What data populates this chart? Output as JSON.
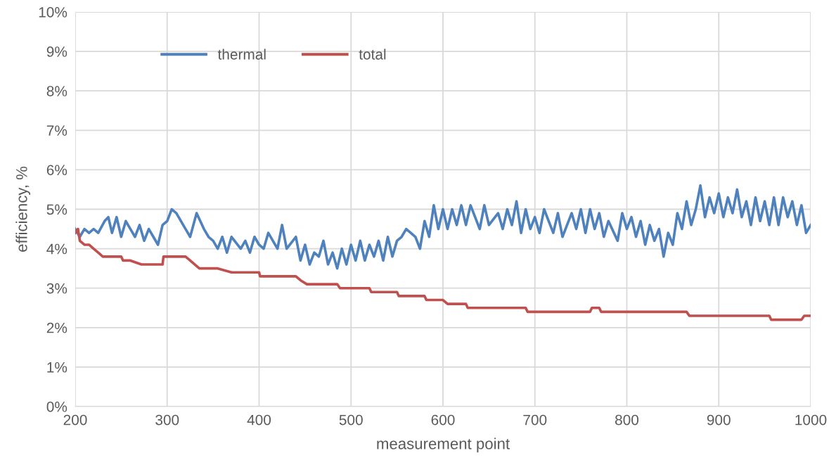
{
  "chart_data": {
    "type": "line",
    "xlabel": "measurement point",
    "ylabel": "efficiency, %",
    "xlim": [
      200,
      1000
    ],
    "xticks": [
      200,
      300,
      400,
      500,
      600,
      700,
      800,
      900,
      1000
    ],
    "ylim": [
      0,
      10
    ],
    "yticks": [
      {
        "value": 0,
        "label": "0%"
      },
      {
        "value": 1,
        "label": "1%"
      },
      {
        "value": 2,
        "label": "2%"
      },
      {
        "value": 3,
        "label": "3%"
      },
      {
        "value": 4,
        "label": "4%"
      },
      {
        "value": 5,
        "label": "5%"
      },
      {
        "value": 6,
        "label": "6%"
      },
      {
        "value": 7,
        "label": "7%"
      },
      {
        "value": 8,
        "label": "8%"
      },
      {
        "value": 9,
        "label": "9%"
      },
      {
        "value": 10,
        "label": "10%"
      }
    ],
    "grid": true,
    "legend": "top left",
    "marker": "none",
    "line_style": "solid",
    "series": [
      {
        "name": "thermal",
        "color": "#4f81bd",
        "x": [
          200,
          205,
          210,
          215,
          220,
          225,
          232,
          236,
          240,
          245,
          250,
          255,
          260,
          265,
          270,
          275,
          280,
          285,
          290,
          295,
          300,
          305,
          310,
          315,
          320,
          325,
          332,
          340,
          345,
          350,
          355,
          360,
          365,
          370,
          380,
          385,
          390,
          395,
          400,
          405,
          410,
          415,
          420,
          425,
          430,
          440,
          445,
          450,
          455,
          460,
          465,
          470,
          475,
          480,
          485,
          490,
          495,
          500,
          505,
          510,
          515,
          520,
          525,
          530,
          535,
          540,
          545,
          550,
          555,
          560,
          565,
          570,
          575,
          580,
          585,
          590,
          595,
          600,
          605,
          610,
          615,
          620,
          625,
          630,
          640,
          645,
          650,
          660,
          665,
          670,
          675,
          680,
          685,
          690,
          695,
          700,
          705,
          710,
          720,
          725,
          730,
          740,
          745,
          750,
          755,
          760,
          765,
          770,
          775,
          780,
          790,
          795,
          800,
          805,
          810,
          815,
          820,
          825,
          830,
          835,
          840,
          845,
          850,
          855,
          860,
          865,
          870,
          875,
          880,
          885,
          890,
          895,
          900,
          905,
          910,
          915,
          920,
          925,
          930,
          935,
          940,
          945,
          950,
          955,
          960,
          965,
          970,
          975,
          980,
          985,
          990,
          995,
          1000
        ],
        "values": [
          4.5,
          4.3,
          4.5,
          4.4,
          4.5,
          4.4,
          4.7,
          4.8,
          4.4,
          4.8,
          4.3,
          4.7,
          4.5,
          4.3,
          4.6,
          4.2,
          4.5,
          4.3,
          4.1,
          4.6,
          4.7,
          5.0,
          4.9,
          4.7,
          4.5,
          4.3,
          4.9,
          4.5,
          4.3,
          4.2,
          4.0,
          4.3,
          3.9,
          4.3,
          4.0,
          4.2,
          3.9,
          4.3,
          4.1,
          4.0,
          4.4,
          4.2,
          4.0,
          4.6,
          4.0,
          4.3,
          3.7,
          4.1,
          3.6,
          3.9,
          3.8,
          4.2,
          3.6,
          3.9,
          3.5,
          4.0,
          3.6,
          4.1,
          3.7,
          4.2,
          3.7,
          4.1,
          3.8,
          4.2,
          3.7,
          4.3,
          3.8,
          4.2,
          4.3,
          4.5,
          4.4,
          4.3,
          4.0,
          4.7,
          4.3,
          5.1,
          4.5,
          5.0,
          4.5,
          5.0,
          4.6,
          5.1,
          4.6,
          5.1,
          4.5,
          5.1,
          4.6,
          4.9,
          4.5,
          5.0,
          4.6,
          5.2,
          4.4,
          5.0,
          4.5,
          4.8,
          4.4,
          5.0,
          4.4,
          4.9,
          4.3,
          4.9,
          4.5,
          5.0,
          4.4,
          5.0,
          4.5,
          4.9,
          4.3,
          4.7,
          4.2,
          4.9,
          4.5,
          4.8,
          4.3,
          4.7,
          4.1,
          4.6,
          4.2,
          4.5,
          3.8,
          4.4,
          4.1,
          4.9,
          4.5,
          5.2,
          4.6,
          5.0,
          5.6,
          4.8,
          5.3,
          4.9,
          5.4,
          4.8,
          5.3,
          4.9,
          5.5,
          4.8,
          5.2,
          4.6,
          5.3,
          4.7,
          5.2,
          4.6,
          5.3,
          4.6,
          5.3,
          4.8,
          5.2,
          4.6,
          5.1,
          4.4,
          4.6
        ]
      },
      {
        "name": "total",
        "color": "#c0504d",
        "x": [
          200,
          203,
          205,
          210,
          215,
          220,
          225,
          230,
          250,
          252,
          260,
          272,
          295,
          296,
          320,
          325,
          335,
          355,
          370,
          400,
          401,
          440,
          445,
          452,
          485,
          488,
          520,
          522,
          550,
          552,
          580,
          582,
          600,
          605,
          625,
          627,
          690,
          692,
          760,
          762,
          770,
          772,
          865,
          868,
          955,
          957,
          990,
          993,
          1000
        ],
        "values": [
          4.4,
          4.5,
          4.2,
          4.1,
          4.1,
          4.0,
          3.9,
          3.8,
          3.8,
          3.7,
          3.7,
          3.6,
          3.6,
          3.8,
          3.8,
          3.7,
          3.5,
          3.5,
          3.4,
          3.4,
          3.3,
          3.3,
          3.2,
          3.1,
          3.1,
          3.0,
          3.0,
          2.9,
          2.9,
          2.8,
          2.8,
          2.7,
          2.7,
          2.6,
          2.6,
          2.5,
          2.5,
          2.4,
          2.4,
          2.5,
          2.5,
          2.4,
          2.4,
          2.3,
          2.3,
          2.2,
          2.2,
          2.3,
          2.3
        ]
      }
    ]
  }
}
